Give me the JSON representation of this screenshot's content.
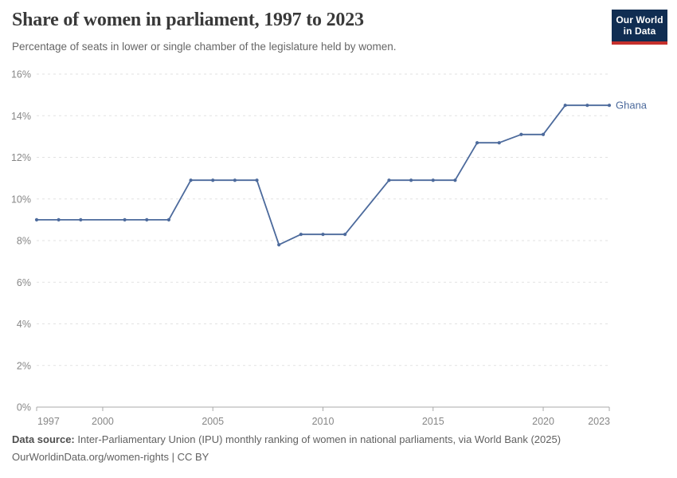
{
  "header": {
    "title": "Share of women in parliament, 1997 to 2023",
    "subtitle": "Percentage of seats in lower or single chamber of the legislature held by women."
  },
  "logo": {
    "line1": "Our World",
    "line2": "in Data",
    "bg_color": "#102d52",
    "stripe_color": "#c5302c"
  },
  "chart_data": {
    "type": "line",
    "title": "Share of women in parliament, 1997 to 2023",
    "xlabel": "",
    "ylabel": "",
    "xlim": [
      1997,
      2023
    ],
    "ylim": [
      0,
      16
    ],
    "x_ticks": [
      1997,
      2000,
      2005,
      2010,
      2015,
      2020,
      2023
    ],
    "y_ticks": [
      0,
      2,
      4,
      6,
      8,
      10,
      12,
      14,
      16
    ],
    "y_tick_suffix": "%",
    "grid": "horizontal-dashed",
    "legend_position": "end-of-line",
    "series": [
      {
        "name": "Ghana",
        "color": "#4C6A9C",
        "points": [
          [
            1997,
            9.0
          ],
          [
            1998,
            9.0
          ],
          [
            1999,
            9.0
          ],
          [
            2001,
            9.0
          ],
          [
            2002,
            9.0
          ],
          [
            2003,
            9.0
          ],
          [
            2004,
            10.9
          ],
          [
            2005,
            10.9
          ],
          [
            2006,
            10.9
          ],
          [
            2007,
            10.9
          ],
          [
            2008,
            7.8
          ],
          [
            2009,
            8.3
          ],
          [
            2010,
            8.3
          ],
          [
            2011,
            8.3
          ],
          [
            2013,
            10.9
          ],
          [
            2014,
            10.9
          ],
          [
            2015,
            10.9
          ],
          [
            2016,
            10.9
          ],
          [
            2017,
            12.7
          ],
          [
            2018,
            12.7
          ],
          [
            2019,
            13.1
          ],
          [
            2020,
            13.1
          ],
          [
            2021,
            14.5
          ],
          [
            2022,
            14.5
          ],
          [
            2023,
            14.5
          ]
        ],
        "missing_years": [
          2000,
          2012
        ]
      }
    ],
    "colors": {
      "line": "#4C6A9C",
      "gridline": "#e2e2e2",
      "axis": "#a9a9a9",
      "tick_text": "#878787"
    }
  },
  "footer": {
    "source_label": "Data source:",
    "source_text": " Inter-Parliamentary Union (IPU) monthly ranking of women in national parliaments, via World Bank (2025)",
    "note": "OurWorldinData.org/women-rights | CC BY"
  }
}
